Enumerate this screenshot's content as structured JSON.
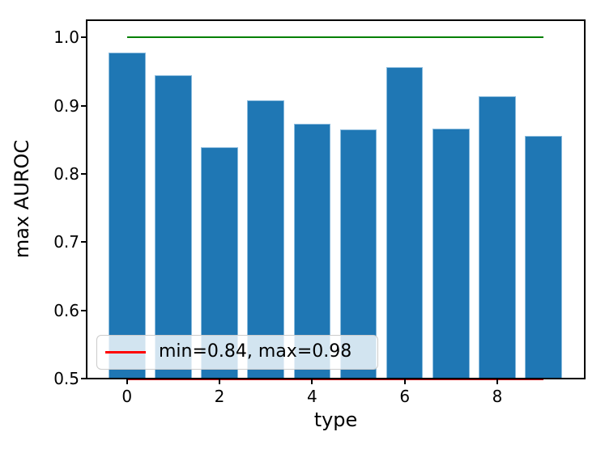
{
  "chart_data": {
    "type": "bar",
    "title": "",
    "xlabel": "type",
    "ylabel": "max AUROC",
    "x": [
      0,
      1,
      2,
      3,
      4,
      5,
      6,
      7,
      8,
      9
    ],
    "values": [
      0.978,
      0.945,
      0.839,
      0.908,
      0.873,
      0.865,
      0.956,
      0.866,
      0.914,
      0.856
    ],
    "bar_color": "#1f77b4",
    "bar_edge_highlight": "#8abbdd",
    "bar_width": 0.8,
    "xlim": [
      -0.87,
      9.89
    ],
    "ylim": [
      0.5,
      1.025
    ],
    "grid": false,
    "xticks": [
      {
        "v": 0,
        "label": "0"
      },
      {
        "v": 2,
        "label": "2"
      },
      {
        "v": 4,
        "label": "4"
      },
      {
        "v": 6,
        "label": "6"
      },
      {
        "v": 8,
        "label": "8"
      }
    ],
    "yticks": [
      {
        "v": 0.5,
        "label": "0.5"
      },
      {
        "v": 0.6,
        "label": "0.6"
      },
      {
        "v": 0.7,
        "label": "0.7"
      },
      {
        "v": 0.8,
        "label": "0.8"
      },
      {
        "v": 0.9,
        "label": "0.9"
      },
      {
        "v": 1.0,
        "label": "1.0"
      }
    ],
    "reference_lines": [
      {
        "name": "max-reference-line",
        "y": 1.0,
        "x0": 0,
        "x1": 9,
        "color": "#008000"
      },
      {
        "name": "min-reference-line",
        "y": 0.5,
        "x0": 0,
        "x1": 9,
        "color": "#cc0000"
      }
    ],
    "legend": {
      "position": "lower left",
      "entries": [
        {
          "label": "min=0.84, max=0.98",
          "line_color": "#ff0000"
        }
      ]
    }
  }
}
